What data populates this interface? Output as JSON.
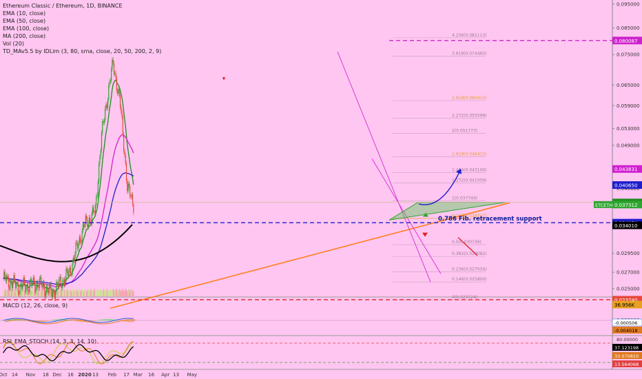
{
  "header": {
    "title": "Ethereum Classic / Ethereum, 1D, BINANCE",
    "indicators": [
      "EMA (10, close)",
      "EMA (50, close)",
      "EMA (100, close)",
      "MA (200, close)",
      "Vol (20)",
      "TD_MAv5.5 by IDLim (3, 80, sma, close, 20, 50, 200, 2, 9)"
    ]
  },
  "panes": {
    "macd_title": "MACD (12, 26, close, 9)",
    "rsi_title": "RSI_EMA_STOCH (14, 3, 3, 14, 10)"
  },
  "annotation": {
    "fib_support": "0.786 Fib. retracement support"
  },
  "colors": {
    "background": "#ffc6f1",
    "up": "#2fa52f",
    "down": "#e64a3c",
    "ema10": "#1f8a1f",
    "ema50": "#d11fd1",
    "ema100": "#1d1dcc",
    "ma200": "#000000",
    "trendline": "#ff7f1a",
    "fib_dash": "#cc22cc"
  },
  "fib_levels": [
    {
      "label": "4.236(0.081113)",
      "value": 0.081113
    },
    {
      "label": "3.618(0.074465)",
      "value": 0.074465
    },
    {
      "label": "2.618(0.060415)",
      "value": 0.060415
    },
    {
      "label": "2.272(0.055598)",
      "value": 0.055598
    },
    {
      "label": "2(0.051773)",
      "value": 0.051773
    },
    {
      "label": "1.618(0.046415)",
      "value": 0.046415
    },
    {
      "label": "1.414(0.043106)",
      "value": 0.043106
    },
    {
      "label": "1.272(0.041059)",
      "value": 0.041059
    },
    {
      "label": "1(0.037749)",
      "value": 0.037749
    },
    {
      "label": "0.786(0.034747)",
      "value": 0.034747
    },
    {
      "label": "0.5(0.030736)",
      "value": 0.030736
    },
    {
      "label": "0.382(0.029082)",
      "value": 0.029082
    },
    {
      "label": "0.236(0.027034)",
      "value": 0.027034
    },
    {
      "label": "0.146(0.025800)",
      "value": 0.0258
    },
    {
      "label": "0(0.023724)",
      "value": 0.023724
    }
  ],
  "chart_data": {
    "type": "candlestick",
    "symbol": "ETCETH",
    "x_ticks": [
      "Oct",
      "14",
      "Nov",
      "18",
      "Dec",
      "16",
      "2020",
      "13",
      "Feb",
      "17",
      "Mar",
      "16",
      "Apr",
      "13",
      "May"
    ],
    "y_ticks": [
      "0.105000",
      "0.095000",
      "0.085000",
      "0.075000",
      "0.065000",
      "0.059000",
      "0.053000",
      "0.049000",
      "0.044000",
      "0.040000",
      "0.037000",
      "0.034000",
      "0.029500",
      "0.027000",
      "0.025000",
      "0.022000"
    ],
    "price_labels": [
      {
        "text": "0.080087",
        "color": "#cc22cc"
      },
      {
        "text": "0.043831",
        "color": "#d11fd1"
      },
      {
        "text": "0.040650",
        "color": "#1d1dcc"
      },
      {
        "text": "0.037454",
        "color": "#1f8a1f"
      },
      {
        "text": "ETCETH",
        "color": "#2fa52f"
      },
      {
        "text": "0.037312",
        "color": "#2fa52f"
      },
      {
        "text": "0.034074",
        "color": "#1d1dcc"
      },
      {
        "text": "0.034010",
        "color": "#000000"
      },
      {
        "text": "0.023740",
        "color": "#e64a3c"
      },
      {
        "text": "36.956K",
        "color": "#e8a020"
      }
    ],
    "macd": {
      "y_ticks": [
        "0.010000",
        "0.000000"
      ],
      "labels": [
        "-0.000506",
        "-0.004018"
      ]
    },
    "rsi": {
      "y_ticks": [
        "80.00000"
      ],
      "labels": [
        "37.123198",
        "33.070810",
        "13.564068"
      ]
    },
    "price_key_points": [
      {
        "date": "2019-10-01",
        "value": 0.0262
      },
      {
        "date": "2019-10-20",
        "value": 0.0252
      },
      {
        "date": "2019-11-10",
        "value": 0.0256
      },
      {
        "date": "2019-11-25",
        "value": 0.0245
      },
      {
        "date": "2019-12-15",
        "value": 0.027
      },
      {
        "date": "2019-12-31",
        "value": 0.0335
      },
      {
        "date": "2020-01-13",
        "value": 0.036
      },
      {
        "date": "2020-01-20",
        "value": 0.051
      },
      {
        "date": "2020-02-02",
        "value": 0.072
      },
      {
        "date": "2020-02-10",
        "value": 0.059
      },
      {
        "date": "2020-02-18",
        "value": 0.04
      },
      {
        "date": "2020-02-25",
        "value": 0.0373
      }
    ]
  }
}
